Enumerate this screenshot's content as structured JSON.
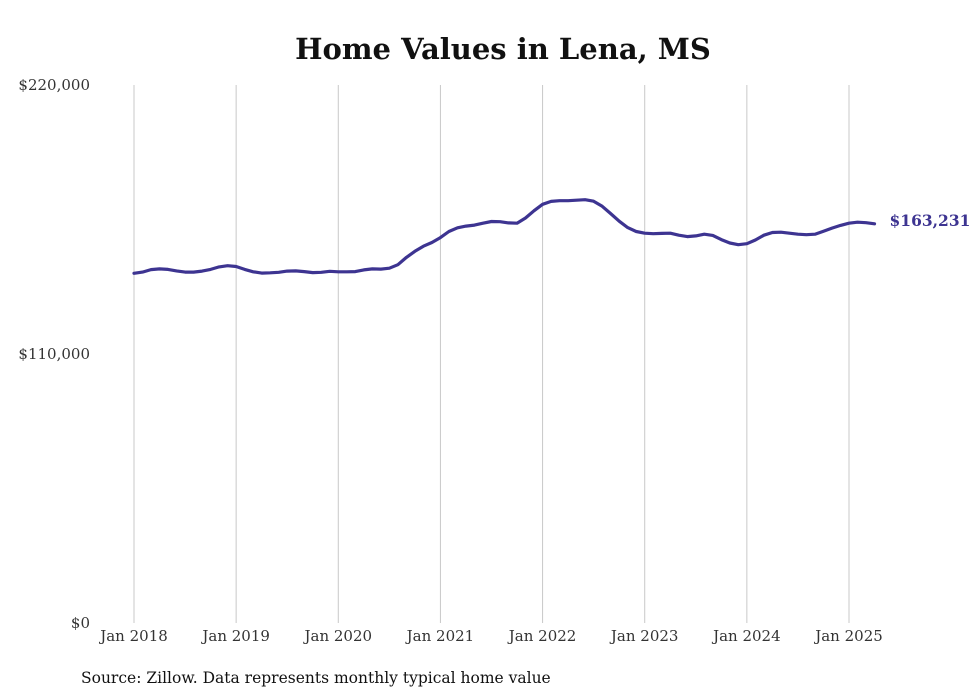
{
  "chart_data": {
    "type": "line",
    "title": "Home Values in Lena, MS",
    "xlabel": "",
    "ylabel": "",
    "ylim": [
      0,
      220000
    ],
    "y_ticks": [
      {
        "value": 0,
        "label": "$0"
      },
      {
        "value": 110000,
        "label": "$110,000"
      },
      {
        "value": 220000,
        "label": "$220,000"
      }
    ],
    "x_ticks": [
      {
        "value": 2018,
        "label": "Jan 2018"
      },
      {
        "value": 2019,
        "label": "Jan 2019"
      },
      {
        "value": 2020,
        "label": "Jan 2020"
      },
      {
        "value": 2021,
        "label": "Jan 2021"
      },
      {
        "value": 2022,
        "label": "Jan 2022"
      },
      {
        "value": 2023,
        "label": "Jan 2023"
      },
      {
        "value": 2024,
        "label": "Jan 2024"
      },
      {
        "value": 2025,
        "label": "Jan 2025"
      }
    ],
    "x_grid": true,
    "color": "#3d3491",
    "end_label": "$163,231",
    "series": [
      {
        "x": [
          "2018-01",
          "2018-02",
          "2018-03",
          "2018-04",
          "2018-05",
          "2018-06",
          "2018-07",
          "2018-08",
          "2018-09",
          "2018-10",
          "2018-11",
          "2018-12",
          "2019-01",
          "2019-02",
          "2019-03",
          "2019-04",
          "2019-05",
          "2019-06",
          "2019-07",
          "2019-08",
          "2019-09",
          "2019-10",
          "2019-11",
          "2019-12",
          "2020-01",
          "2020-02",
          "2020-03",
          "2020-04",
          "2020-05",
          "2020-06",
          "2020-07",
          "2020-08",
          "2020-09",
          "2020-10",
          "2020-11",
          "2020-12",
          "2021-01",
          "2021-02",
          "2021-03",
          "2021-04",
          "2021-05",
          "2021-06",
          "2021-07",
          "2021-08",
          "2021-09",
          "2021-10",
          "2021-11",
          "2021-12",
          "2022-01",
          "2022-02",
          "2022-03",
          "2022-04",
          "2022-05",
          "2022-06",
          "2022-07",
          "2022-08",
          "2022-09",
          "2022-10",
          "2022-11",
          "2022-12",
          "2023-01",
          "2023-02",
          "2023-03",
          "2023-04",
          "2023-05",
          "2023-06",
          "2023-07",
          "2023-08",
          "2023-09",
          "2023-10",
          "2023-11",
          "2023-12",
          "2024-01",
          "2024-02",
          "2024-03",
          "2024-04",
          "2024-05",
          "2024-06",
          "2024-07",
          "2024-08",
          "2024-09",
          "2024-10",
          "2024-11",
          "2024-12",
          "2025-01",
          "2025-02",
          "2025-03",
          "2025-04"
        ],
        "values": [
          143000,
          143500,
          144500,
          144800,
          144600,
          144000,
          143500,
          143500,
          143900,
          144600,
          145600,
          146100,
          145800,
          144600,
          143600,
          143100,
          143200,
          143400,
          143900,
          144000,
          143700,
          143300,
          143400,
          143800,
          143600,
          143600,
          143700,
          144400,
          144800,
          144700,
          145100,
          146500,
          149500,
          152000,
          154100,
          155600,
          157600,
          160100,
          161600,
          162300,
          162700,
          163500,
          164200,
          164100,
          163600,
          163500,
          165600,
          168600,
          171200,
          172400,
          172700,
          172700,
          172900,
          173100,
          172500,
          170400,
          167400,
          164300,
          161700,
          160100,
          159400,
          159200,
          159300,
          159400,
          158600,
          158000,
          158300,
          159000,
          158500,
          156800,
          155400,
          154700,
          155100,
          156600,
          158600,
          159700,
          159800,
          159400,
          159000,
          158800,
          159000,
          160200,
          161500,
          162600,
          163500,
          163900,
          163700,
          163231
        ]
      }
    ]
  },
  "footer": {
    "source": "Source: Zillow. Data represents monthly typical home value"
  }
}
